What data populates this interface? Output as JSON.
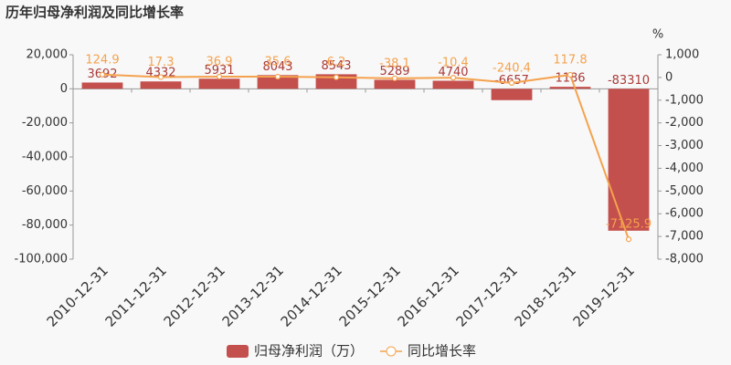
{
  "chart_data": {
    "type": "bar",
    "title": "历年归母净利润及同比增长率",
    "categories": [
      "2010-12-31",
      "2011-12-31",
      "2012-12-31",
      "2013-12-31",
      "2014-12-31",
      "2015-12-31",
      "2016-12-31",
      "2017-12-31",
      "2018-12-31",
      "2019-12-31"
    ],
    "series": [
      {
        "name": "归母净利润（万）",
        "type": "bar",
        "color": "#c4504d",
        "values": [
          3692,
          4332,
          5931,
          8043,
          8543,
          5289,
          4740,
          -6657,
          1186,
          -83310
        ]
      },
      {
        "name": "同比增长率",
        "type": "line",
        "axis": "y2",
        "color": "#f4a24e",
        "values": [
          124.9,
          17.3,
          36.9,
          35.6,
          6.2,
          -38.1,
          -10.4,
          -240.4,
          117.8,
          -7125.9
        ]
      }
    ],
    "ylim": [
      -100000,
      20000
    ],
    "yticks": [
      {
        "value": -100000,
        "label": "-100,000"
      },
      {
        "value": -80000,
        "label": "-80,000"
      },
      {
        "value": -60000,
        "label": "-60,000"
      },
      {
        "value": -40000,
        "label": "-40,000"
      },
      {
        "value": -20000,
        "label": "-20,000"
      },
      0,
      {
        "value": 20000,
        "label": "20,000"
      }
    ],
    "y2lim": [
      -8000,
      1000
    ],
    "y2ticks": [
      {
        "value": -8000,
        "label": "-8,000"
      },
      {
        "value": -7000,
        "label": "-7,000"
      },
      {
        "value": -6000,
        "label": "-6,000"
      },
      {
        "value": -5000,
        "label": "-5,000"
      },
      {
        "value": -4000,
        "label": "-4,000"
      },
      {
        "value": -3000,
        "label": "-3,000"
      },
      {
        "value": -2000,
        "label": "-2,000"
      },
      {
        "value": -1000,
        "label": "-1,000"
      },
      0,
      {
        "value": 1000,
        "label": "1,000"
      }
    ],
    "y2label": "%",
    "grid": false
  }
}
